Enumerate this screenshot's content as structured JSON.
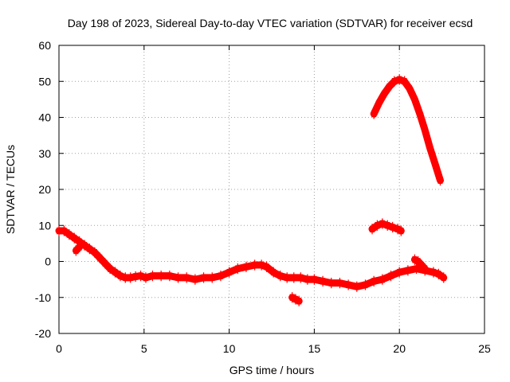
{
  "chart_data": {
    "type": "scatter",
    "title": "Day 198 of 2023, Sidereal Day-to-day VTEC variation (SDTVAR) for receiver ecsd",
    "xlabel": "GPS time / hours",
    "ylabel": "SDTVAR / TECUs",
    "xlim": [
      0,
      25
    ],
    "ylim": [
      -20,
      60
    ],
    "xticks": [
      0,
      5,
      10,
      15,
      20,
      25
    ],
    "yticks": [
      -20,
      -10,
      0,
      10,
      20,
      30,
      40,
      50,
      60
    ],
    "grid": true,
    "marker": "+",
    "color": "#ff0000",
    "series": [
      {
        "name": "main-track",
        "x": [
          0.0,
          0.3,
          0.6,
          0.9,
          1.2,
          1.5,
          1.8,
          2.1,
          2.4,
          2.7,
          3.0,
          3.3,
          3.6,
          3.9,
          4.2,
          4.5,
          4.8,
          5.1,
          5.5,
          6.0,
          6.5,
          7.0,
          7.5,
          8.0,
          8.5,
          9.0,
          9.5,
          10.0,
          10.5,
          11.0,
          11.5,
          11.9,
          12.2,
          12.6,
          13.0,
          13.4,
          13.8,
          14.2,
          14.6,
          15.0,
          15.5,
          16.0,
          16.5,
          17.0,
          17.5,
          18.0,
          18.5,
          19.0,
          19.5,
          20.0,
          20.5,
          21.0,
          21.5,
          22.0,
          22.3,
          22.6
        ],
        "y": [
          8.5,
          8.5,
          7.5,
          6.5,
          5.5,
          4.5,
          3.5,
          2.5,
          1.0,
          -0.5,
          -2.0,
          -3.0,
          -4.0,
          -4.5,
          -4.5,
          -4.2,
          -4.0,
          -4.5,
          -4.0,
          -4.0,
          -4.0,
          -4.5,
          -4.5,
          -5.0,
          -4.5,
          -4.5,
          -4.0,
          -3.0,
          -2.0,
          -1.5,
          -1.0,
          -1.0,
          -1.5,
          -3.0,
          -4.0,
          -4.5,
          -4.5,
          -4.5,
          -5.0,
          -5.0,
          -5.5,
          -6.0,
          -6.0,
          -6.5,
          -7.0,
          -6.5,
          -5.5,
          -5.0,
          -4.0,
          -3.0,
          -2.5,
          -2.0,
          -2.5,
          -3.0,
          -3.5,
          -4.5
        ]
      },
      {
        "name": "arc-high",
        "x": [
          18.5,
          18.8,
          19.1,
          19.4,
          19.7,
          20.0,
          20.3,
          20.6,
          20.9,
          21.2,
          21.5,
          21.8,
          22.1,
          22.4
        ],
        "y": [
          41.0,
          44.0,
          46.5,
          48.5,
          50.0,
          50.5,
          50.0,
          48.0,
          45.0,
          41.0,
          36.5,
          31.5,
          27.0,
          22.5
        ]
      },
      {
        "name": "arc-low",
        "x": [
          18.4,
          18.7,
          19.0,
          19.3,
          19.6,
          19.9,
          20.1
        ],
        "y": [
          9.0,
          10.0,
          10.5,
          10.0,
          9.5,
          9.0,
          8.5
        ]
      },
      {
        "name": "small-dip",
        "x": [
          13.7,
          13.9,
          14.1
        ],
        "y": [
          -10.0,
          -10.5,
          -11.0
        ]
      },
      {
        "name": "small-bump",
        "x": [
          1.0,
          1.1,
          1.2
        ],
        "y": [
          3.0,
          3.5,
          4.0
        ]
      },
      {
        "name": "late-bump",
        "x": [
          20.9,
          21.1,
          21.3,
          21.5
        ],
        "y": [
          0.5,
          0.0,
          -1.0,
          -2.0
        ]
      }
    ]
  }
}
